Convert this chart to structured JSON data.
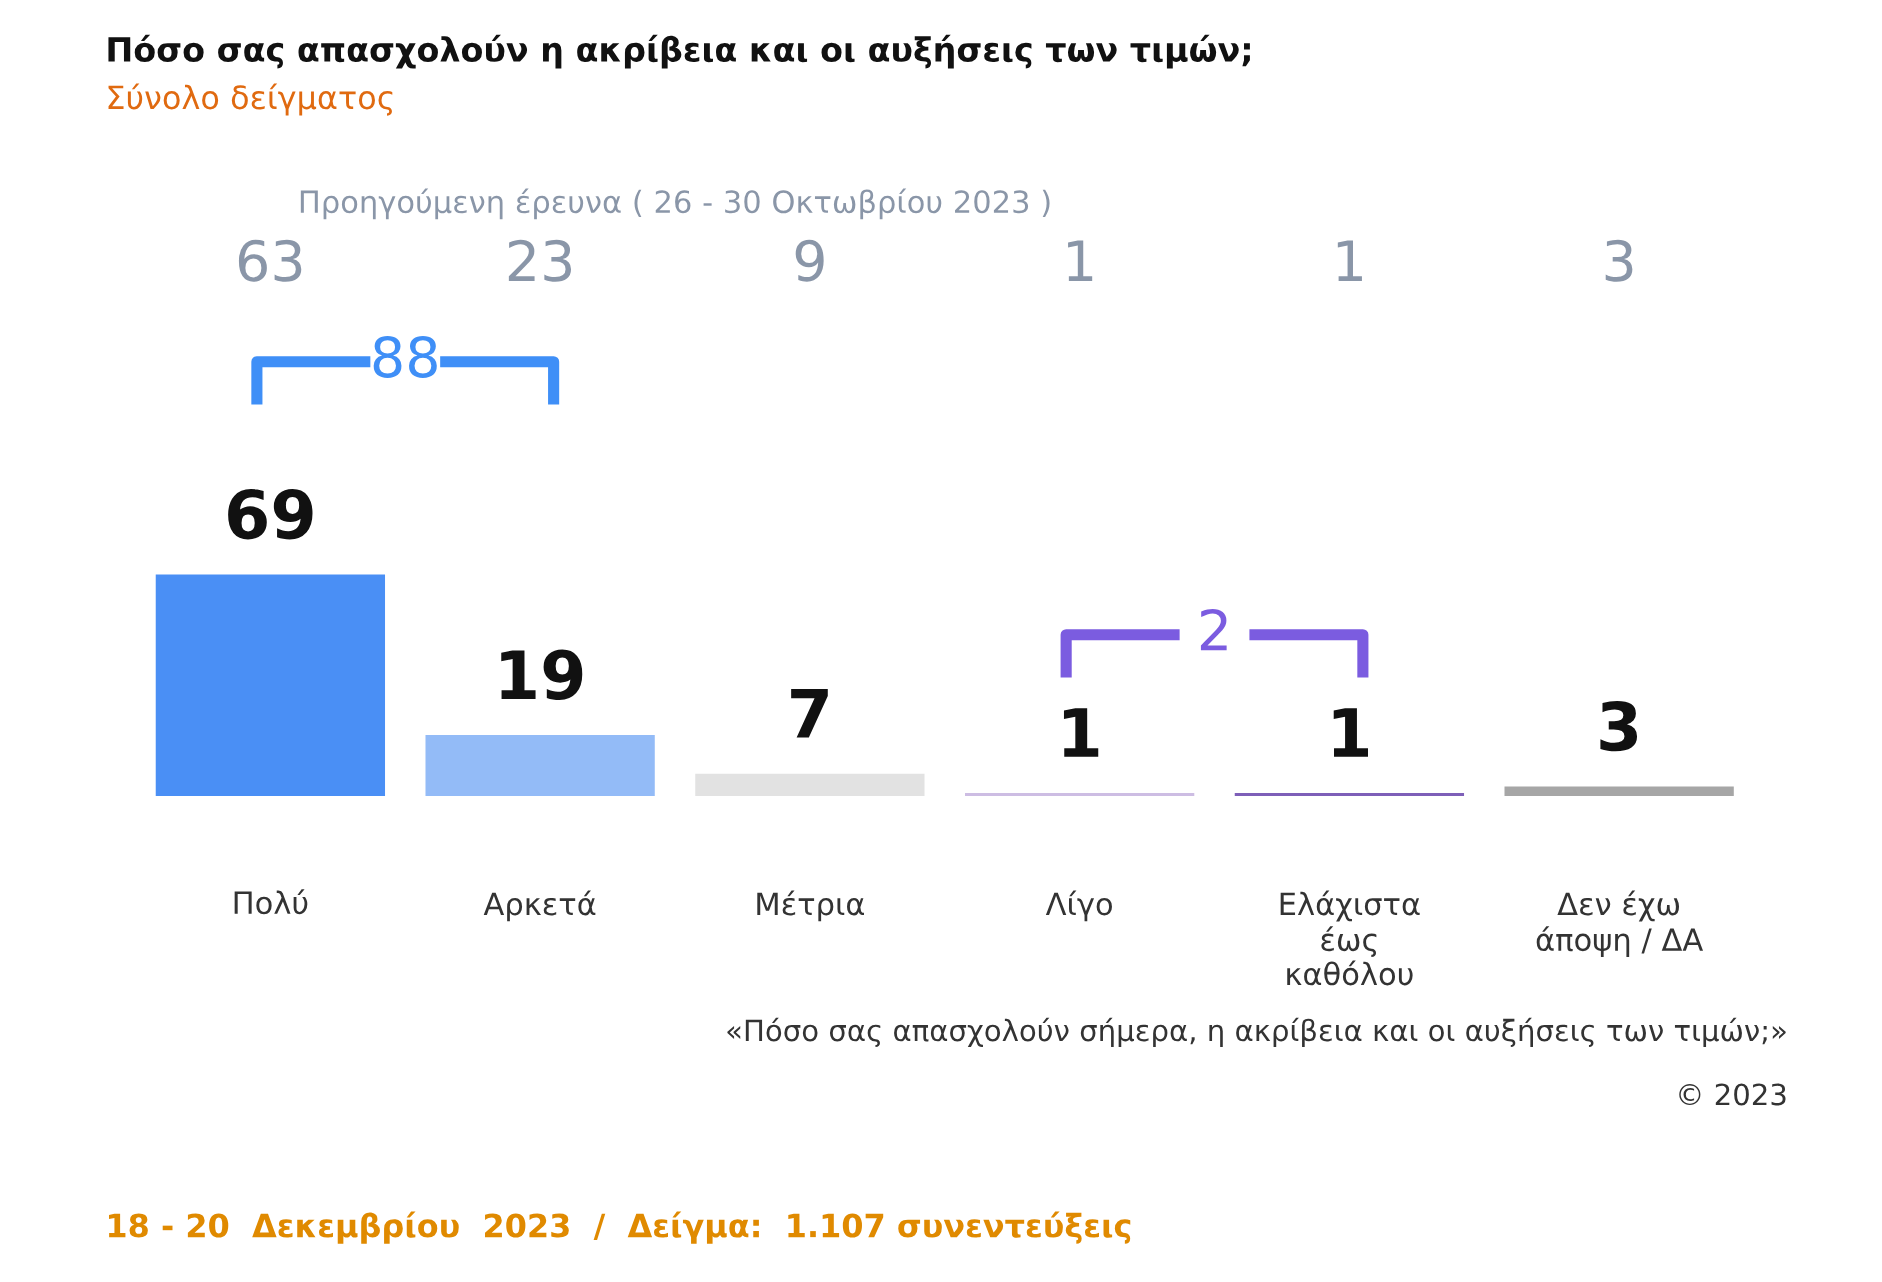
{
  "chart_data": {
    "type": "bar",
    "title": "Πόσο σας απασχολούν η ακρίβεια και οι αυξήσεις των τιμών;",
    "subtitle": "Σύνολο δείγματος",
    "categories": [
      "Πολύ",
      "Αρκετά",
      "Μέτρια",
      "Λίγο",
      "Ελάχιστα\nέως\nκαθόλου",
      "Δεν έχω\nάποψη / ΔΑ"
    ],
    "values": [
      69,
      19,
      7,
      1,
      1,
      3
    ],
    "colors": [
      "#4a8ff5",
      "#93bbf7",
      "#e2e2e2",
      "#cdbde3",
      "#7e5fb8",
      "#a6a6a6"
    ],
    "data_labels": true,
    "grid": false,
    "legend": false,
    "annotations": [
      "Προηγούμενη έρευνα ( 26 - 30 Οκτωβρίου 2023 )",
      "63",
      "23",
      "9",
      "1",
      "1",
      "3",
      "88",
      "2",
      "«Πόσο σας απασχολούν σήμερα, η ακρίβεια και οι αυξήσεις των τιμών;»",
      "© 2023",
      "18 - 20  Δεκεμβρίου  2023  /  Δείγμα:  1.107 συνεντεύξεις"
    ]
  }
}
